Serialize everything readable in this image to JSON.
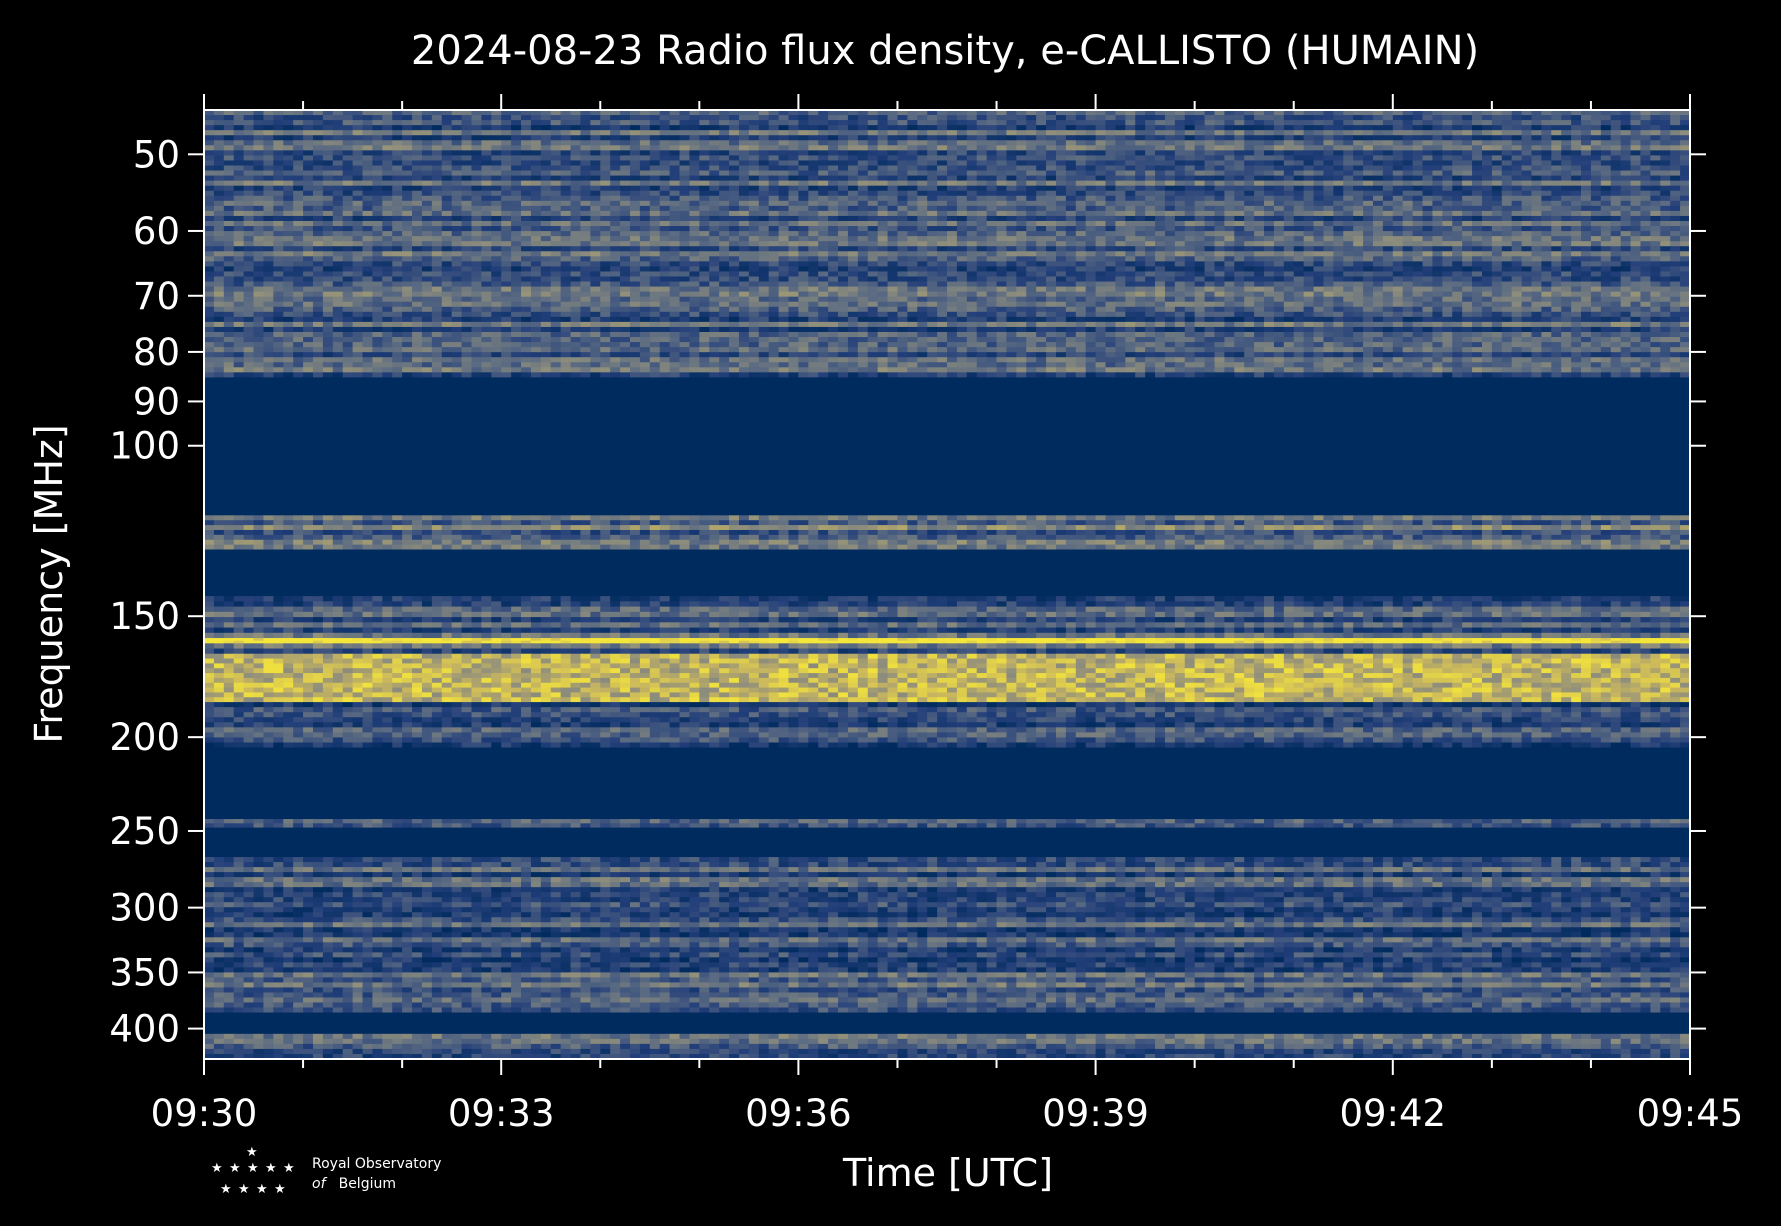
{
  "chart_data": {
    "type": "heatmap",
    "title": "2024-08-23 Radio flux density, e-CALLISTO (HUMAIN)",
    "xlabel": "Time [UTC]",
    "ylabel": "Frequency [MHz]",
    "x_ticks": [
      "09:30",
      "09:33",
      "09:36",
      "09:39",
      "09:42",
      "09:45"
    ],
    "x_range_minutes": [
      0,
      15
    ],
    "y_ticks": [
      50,
      60,
      70,
      80,
      90,
      100,
      150,
      200,
      250,
      300,
      350,
      400
    ],
    "y_range_mhz": [
      45,
      430
    ],
    "y_scale": "log",
    "colormap": [
      "#002b5e",
      "#233f7a",
      "#5b6b82",
      "#8f8e7c",
      "#c9b75e",
      "#f5e63a"
    ],
    "bands": [
      {
        "f_lo": 45,
        "f_hi": 85,
        "kind": "noise",
        "level": 0.32
      },
      {
        "f_lo": 85,
        "f_hi": 118,
        "kind": "masked"
      },
      {
        "f_lo": 118,
        "f_hi": 128,
        "kind": "noise",
        "level": 0.42
      },
      {
        "f_lo": 128,
        "f_hi": 143,
        "kind": "masked"
      },
      {
        "f_lo": 143,
        "f_hi": 158,
        "kind": "noise",
        "level": 0.3
      },
      {
        "f_lo": 158,
        "f_hi": 160,
        "kind": "strong",
        "level": 0.97
      },
      {
        "f_lo": 160,
        "f_hi": 164,
        "kind": "noise",
        "level": 0.35
      },
      {
        "f_lo": 164,
        "f_hi": 184,
        "kind": "strong",
        "level": 0.7
      },
      {
        "f_lo": 184,
        "f_hi": 205,
        "kind": "noise",
        "level": 0.28
      },
      {
        "f_lo": 205,
        "f_hi": 243,
        "kind": "masked"
      },
      {
        "f_lo": 243,
        "f_hi": 248,
        "kind": "noise",
        "level": 0.3
      },
      {
        "f_lo": 248,
        "f_hi": 266,
        "kind": "masked"
      },
      {
        "f_lo": 266,
        "f_hi": 385,
        "kind": "noise",
        "level": 0.3
      },
      {
        "f_lo": 385,
        "f_hi": 405,
        "kind": "masked"
      },
      {
        "f_lo": 405,
        "f_hi": 430,
        "kind": "noise",
        "level": 0.3
      }
    ],
    "notable_lines_mhz": [
      54,
      70,
      80,
      150,
      159,
      165,
      300,
      405
    ],
    "grid": false
  },
  "logo": {
    "line1": "Royal Observatory",
    "line2_prefix": "of",
    "line2_rest": "Belgium"
  }
}
